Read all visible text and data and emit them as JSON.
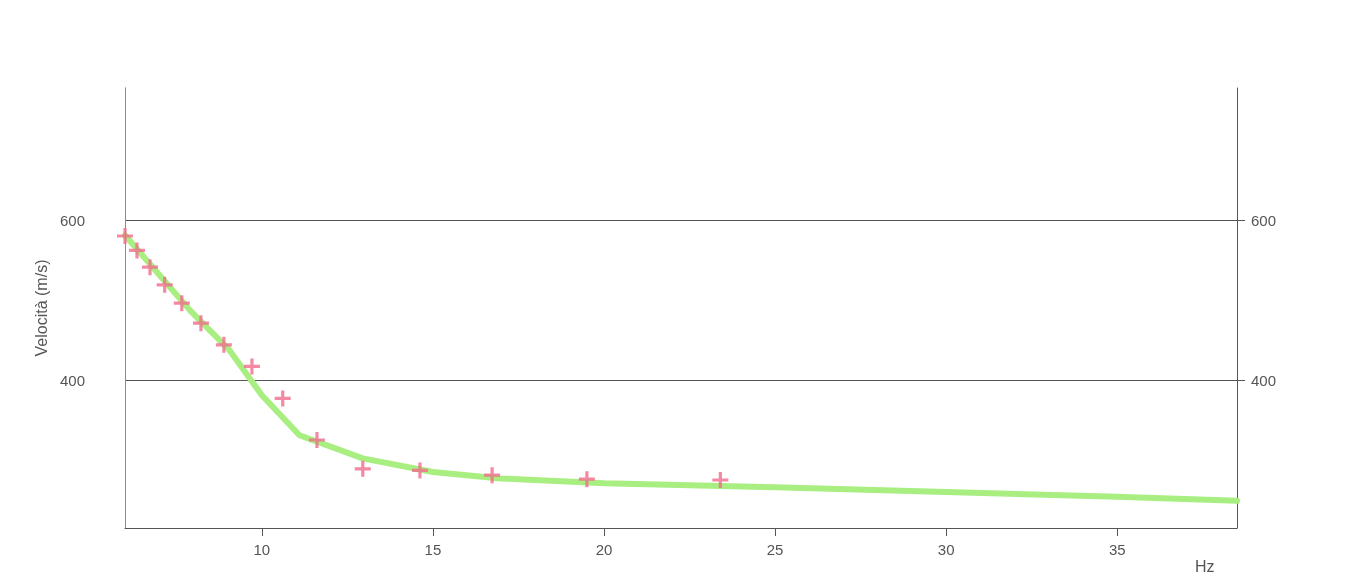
{
  "chart_data": {
    "type": "scatter",
    "xlabel": "Hz",
    "ylabel": "Velocità (m/s)",
    "xlim": [
      6,
      38.5
    ],
    "xticks": [
      10,
      15,
      20,
      25,
      30,
      35
    ],
    "ylim": [
      215,
      765
    ],
    "yticks": [
      400,
      600
    ],
    "y2lim": [
      215,
      765
    ],
    "y2ticks": [
      400,
      600
    ],
    "grid": "y",
    "ref_lines": [
      {
        "axis": "x",
        "value": 6,
        "color": "#d8704c"
      }
    ],
    "series": [
      {
        "type": "line",
        "color": "#a8ee80",
        "marker": "none",
        "line_style": "solid",
        "x": [
          6,
          7.9,
          9.06,
          10,
          11.1,
          12.95,
          15,
          16.96,
          20,
          25,
          30,
          35,
          38.5
        ],
        "values": [
          581,
          487,
          437,
          381,
          331,
          302,
          285,
          277,
          271,
          266,
          260,
          254,
          249
        ]
      },
      {
        "color": "#f06c8c",
        "marker": "cross",
        "x": [
          6,
          6.35,
          6.73,
          7.16,
          7.66,
          8.22,
          8.89,
          9.71,
          10.61,
          11.61,
          12.95,
          14.62,
          16.73,
          19.5,
          23.4
        ],
        "values": [
          580,
          562,
          541,
          519,
          496,
          471,
          444,
          417,
          377,
          325,
          289,
          287,
          281,
          276,
          275
        ]
      }
    ]
  }
}
